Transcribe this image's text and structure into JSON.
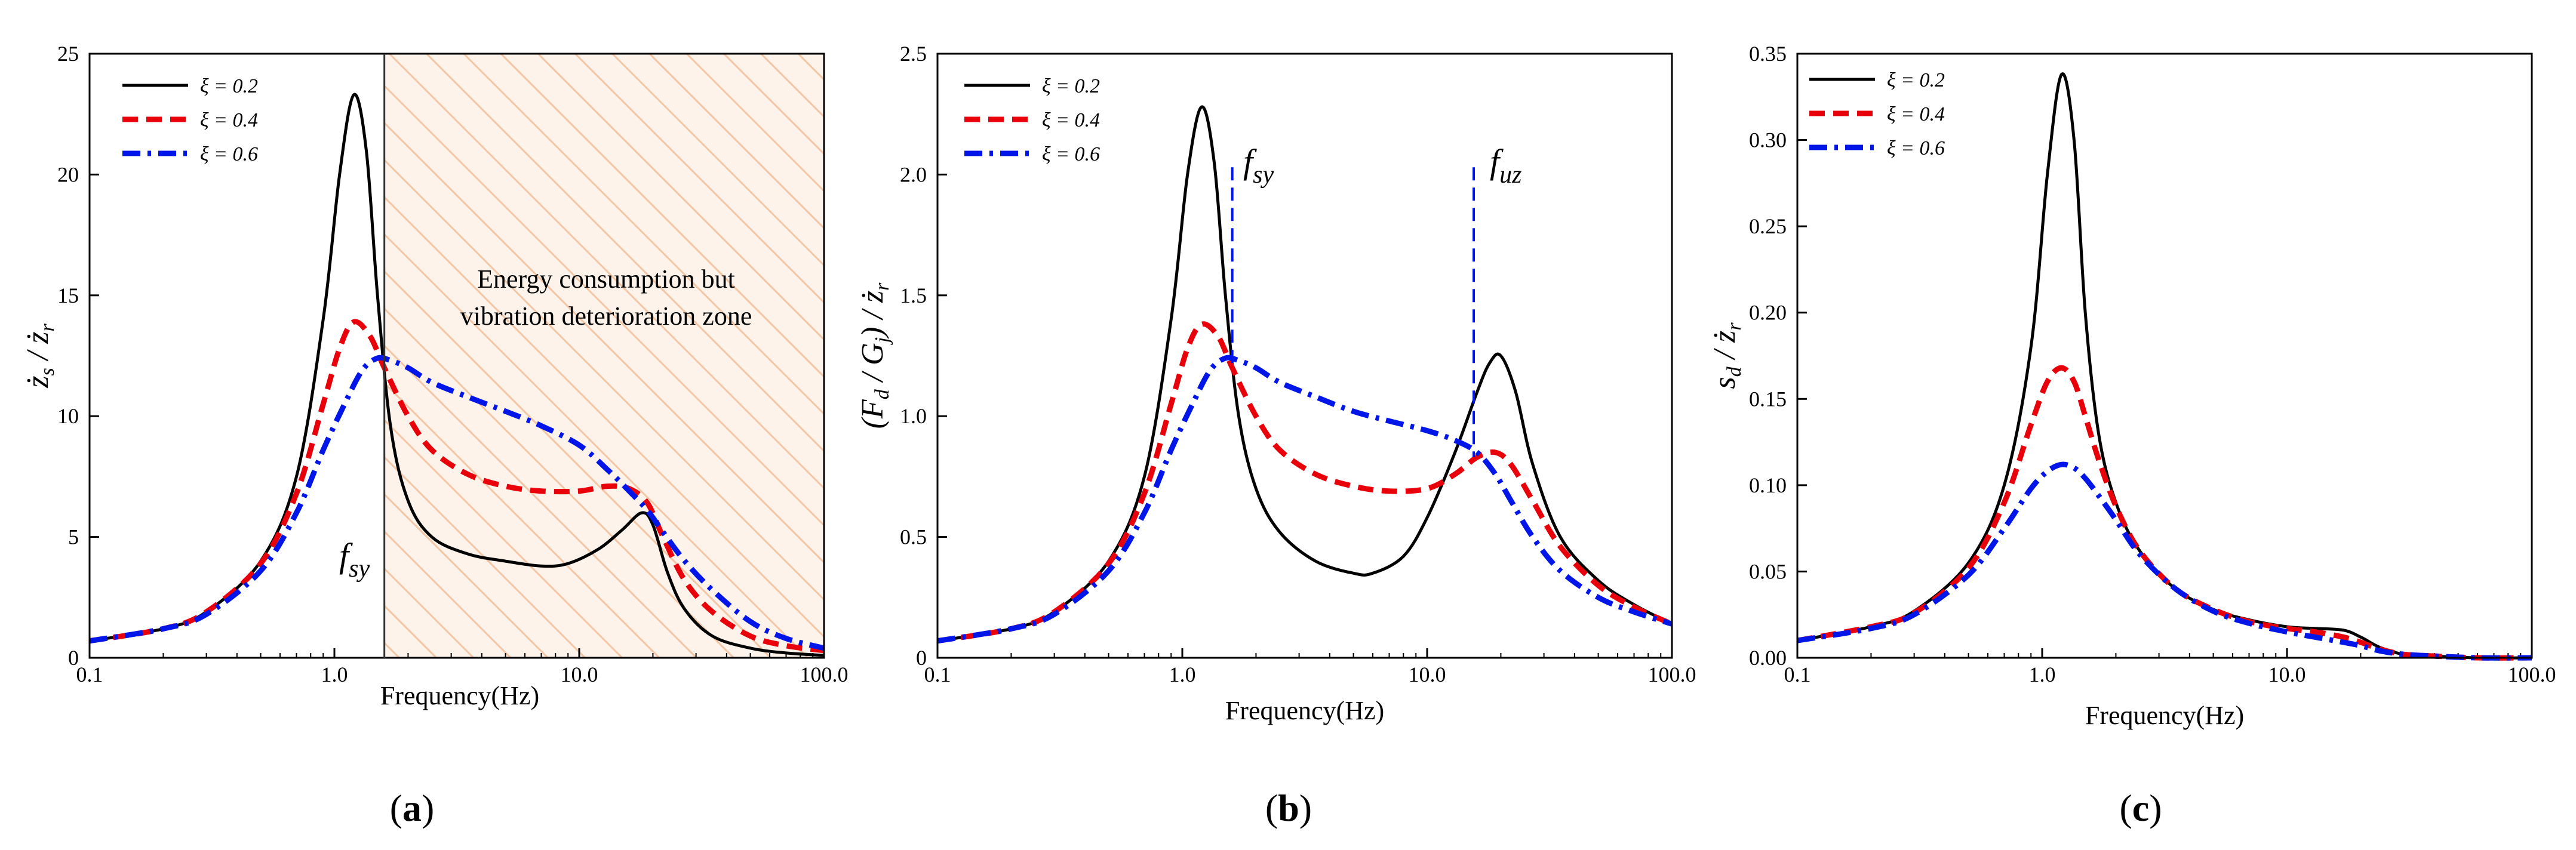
{
  "chart_data": [
    {
      "type": "line",
      "panel_label": "(a)",
      "xlabel": "Frequency(Hz)",
      "ylabel": "ż_s / ż_r",
      "xscale": "log",
      "xlim": [
        0.1,
        100
      ],
      "ylim": [
        0,
        25
      ],
      "xticks": [
        "0.1",
        "1.0",
        "10.0",
        "100.0"
      ],
      "yticks": [
        "0",
        "5",
        "10",
        "15",
        "20",
        "25"
      ],
      "legend": {
        "position": "top-left",
        "entries": [
          "ξ = 0.2",
          "ξ = 0.4",
          "ξ = 0.6"
        ]
      },
      "annotations": [
        {
          "text": "f",
          "sub": "sy",
          "x": 1.3
        },
        {
          "text": "Energy consumption but",
          "x": 10
        },
        {
          "text": "vibration deterioration zone",
          "x": 10
        }
      ],
      "shaded_zone": {
        "x_from": 1.6,
        "x_to": 100,
        "pattern": "diagonal-hatch"
      },
      "series": [
        {
          "name": "ξ = 0.2",
          "color": "#000000",
          "style": "solid",
          "x": [
            0.1,
            0.2,
            0.3,
            0.5,
            0.7,
            0.9,
            1.05,
            1.2,
            1.35,
            1.5,
            1.7,
            2.0,
            2.5,
            3.5,
            5,
            7,
            9,
            12,
            15,
            18,
            20,
            23,
            27,
            35,
            50,
            70,
            100
          ],
          "y": [
            0.7,
            1.2,
            1.9,
            4.0,
            7.5,
            14.0,
            20.0,
            23.3,
            21.0,
            15.0,
            9.5,
            6.5,
            5.0,
            4.3,
            4.0,
            3.8,
            3.9,
            4.5,
            5.3,
            6.0,
            5.5,
            3.5,
            2.0,
            0.9,
            0.4,
            0.2,
            0.1
          ]
        },
        {
          "name": "ξ = 0.4",
          "color": "#e8000b",
          "style": "dashed",
          "x": [
            0.1,
            0.2,
            0.3,
            0.5,
            0.7,
            0.9,
            1.05,
            1.2,
            1.4,
            1.6,
            2.0,
            2.5,
            3.5,
            5,
            7,
            10,
            13,
            16,
            19,
            22,
            27,
            35,
            50,
            70,
            100
          ],
          "y": [
            0.7,
            1.2,
            1.9,
            3.9,
            6.8,
            10.5,
            12.8,
            13.9,
            13.3,
            12.0,
            10.0,
            8.6,
            7.6,
            7.1,
            6.9,
            6.9,
            7.1,
            7.0,
            6.4,
            5.0,
            3.2,
            1.9,
            0.9,
            0.5,
            0.3
          ]
        },
        {
          "name": "ξ = 0.6",
          "color": "#0015e8",
          "style": "dash-dot",
          "x": [
            0.1,
            0.2,
            0.3,
            0.5,
            0.7,
            0.9,
            1.1,
            1.3,
            1.5,
            1.7,
            2.0,
            2.5,
            3.5,
            5,
            7,
            10,
            13,
            16,
            19,
            22,
            27,
            35,
            50,
            70,
            100
          ],
          "y": [
            0.7,
            1.2,
            1.8,
            3.6,
            6.0,
            8.6,
            10.5,
            11.9,
            12.4,
            12.3,
            12.0,
            11.4,
            10.8,
            10.2,
            9.6,
            8.8,
            7.8,
            6.9,
            6.1,
            5.2,
            4.0,
            2.8,
            1.5,
            0.8,
            0.4
          ]
        }
      ]
    },
    {
      "type": "line",
      "panel_label": "(b)",
      "xlabel": "Frequency(Hz)",
      "ylabel": "(F_d / G_j) / ż_r",
      "xscale": "log",
      "xlim": [
        0.1,
        100
      ],
      "ylim": [
        0,
        2.5
      ],
      "xticks": [
        "0.1",
        "1.0",
        "10.0",
        "100.0"
      ],
      "yticks": [
        "0",
        "0.5",
        "1.0",
        "1.5",
        "2.0",
        "2.5"
      ],
      "legend": {
        "position": "top-left",
        "entries": [
          "ξ = 0.2",
          "ξ = 0.4",
          "ξ = 0.6"
        ]
      },
      "annotations": [
        {
          "text": "f",
          "sub": "sy",
          "x": 1.6
        },
        {
          "text": "f",
          "sub": "uz",
          "x": 15.5
        }
      ],
      "series": [
        {
          "name": "ξ = 0.2",
          "color": "#000000",
          "style": "solid",
          "x": [
            0.1,
            0.2,
            0.3,
            0.5,
            0.7,
            0.9,
            1.05,
            1.2,
            1.35,
            1.5,
            1.7,
            2.0,
            2.5,
            3.5,
            5,
            6,
            8,
            10,
            13,
            16,
            18,
            20,
            23,
            27,
            35,
            50,
            70,
            100
          ],
          "y": [
            0.07,
            0.12,
            0.19,
            0.4,
            0.75,
            1.4,
            2.0,
            2.28,
            2.05,
            1.5,
            1.0,
            0.7,
            0.52,
            0.4,
            0.35,
            0.35,
            0.42,
            0.58,
            0.85,
            1.1,
            1.22,
            1.25,
            1.1,
            0.8,
            0.5,
            0.32,
            0.22,
            0.14
          ]
        },
        {
          "name": "ξ = 0.4",
          "color": "#e8000b",
          "style": "dashed",
          "x": [
            0.1,
            0.2,
            0.3,
            0.5,
            0.7,
            0.9,
            1.05,
            1.2,
            1.4,
            1.6,
            2.0,
            2.5,
            3.5,
            5,
            7,
            10,
            13,
            16,
            19,
            22,
            27,
            35,
            50,
            70,
            100
          ],
          "y": [
            0.07,
            0.12,
            0.19,
            0.39,
            0.68,
            1.05,
            1.28,
            1.38,
            1.33,
            1.2,
            1.0,
            0.86,
            0.76,
            0.71,
            0.69,
            0.7,
            0.76,
            0.83,
            0.85,
            0.8,
            0.65,
            0.46,
            0.3,
            0.21,
            0.14
          ]
        },
        {
          "name": "ξ = 0.6",
          "color": "#0015e8",
          "style": "dash-dot",
          "x": [
            0.1,
            0.2,
            0.3,
            0.5,
            0.7,
            0.9,
            1.1,
            1.3,
            1.5,
            1.7,
            2.0,
            2.5,
            3.5,
            5,
            7,
            10,
            13,
            16,
            19,
            22,
            27,
            35,
            50,
            70,
            100
          ],
          "y": [
            0.07,
            0.12,
            0.18,
            0.36,
            0.6,
            0.86,
            1.05,
            1.19,
            1.24,
            1.23,
            1.2,
            1.14,
            1.08,
            1.02,
            0.98,
            0.94,
            0.9,
            0.85,
            0.76,
            0.65,
            0.5,
            0.36,
            0.25,
            0.19,
            0.14
          ]
        }
      ]
    },
    {
      "type": "line",
      "panel_label": "(c)",
      "xlabel": "Frequency(Hz)",
      "ylabel": "s_d / ż_r",
      "xscale": "log",
      "xlim": [
        0.1,
        100
      ],
      "ylim": [
        0,
        0.35
      ],
      "xticks": [
        "0.1",
        "1.0",
        "10.0",
        "100.0"
      ],
      "yticks": [
        "0.00",
        "0.05",
        "0.10",
        "0.15",
        "0.20",
        "0.25",
        "0.30",
        "0.35"
      ],
      "legend": {
        "position": "top-left",
        "entries": [
          "ξ = 0.2",
          "ξ = 0.4",
          "ξ = 0.6"
        ]
      },
      "annotations": [],
      "series": [
        {
          "name": "ξ = 0.2",
          "color": "#000000",
          "style": "solid",
          "x": [
            0.1,
            0.2,
            0.3,
            0.5,
            0.7,
            0.9,
            1.05,
            1.2,
            1.35,
            1.5,
            1.7,
            2.0,
            2.5,
            3.5,
            5,
            7,
            10,
            13,
            17,
            20,
            24,
            30,
            40,
            60,
            100
          ],
          "y": [
            0.01,
            0.018,
            0.027,
            0.055,
            0.1,
            0.18,
            0.28,
            0.338,
            0.3,
            0.2,
            0.13,
            0.09,
            0.062,
            0.04,
            0.028,
            0.022,
            0.018,
            0.017,
            0.016,
            0.012,
            0.006,
            0.002,
            0.001,
            0.0,
            0.0
          ]
        },
        {
          "name": "ξ = 0.4",
          "color": "#e8000b",
          "style": "dashed",
          "x": [
            0.1,
            0.2,
            0.3,
            0.5,
            0.7,
            0.9,
            1.05,
            1.2,
            1.35,
            1.5,
            1.7,
            2.0,
            2.5,
            3.5,
            5,
            7,
            10,
            13,
            17,
            20,
            24,
            30,
            40,
            60,
            100
          ],
          "y": [
            0.01,
            0.018,
            0.026,
            0.052,
            0.09,
            0.135,
            0.16,
            0.168,
            0.16,
            0.14,
            0.115,
            0.088,
            0.062,
            0.04,
            0.028,
            0.021,
            0.017,
            0.015,
            0.012,
            0.009,
            0.005,
            0.002,
            0.001,
            0.0,
            0.0
          ]
        },
        {
          "name": "ξ = 0.6",
          "color": "#0015e8",
          "style": "dash-dot",
          "x": [
            0.1,
            0.2,
            0.3,
            0.5,
            0.7,
            0.9,
            1.05,
            1.2,
            1.35,
            1.5,
            1.7,
            2.0,
            2.5,
            3.5,
            5,
            7,
            10,
            13,
            17,
            20,
            24,
            30,
            40,
            60,
            100
          ],
          "y": [
            0.01,
            0.017,
            0.025,
            0.048,
            0.075,
            0.098,
            0.108,
            0.112,
            0.11,
            0.104,
            0.094,
            0.08,
            0.06,
            0.04,
            0.027,
            0.02,
            0.015,
            0.012,
            0.009,
            0.007,
            0.004,
            0.002,
            0.001,
            0.0,
            0.0
          ]
        }
      ]
    }
  ]
}
